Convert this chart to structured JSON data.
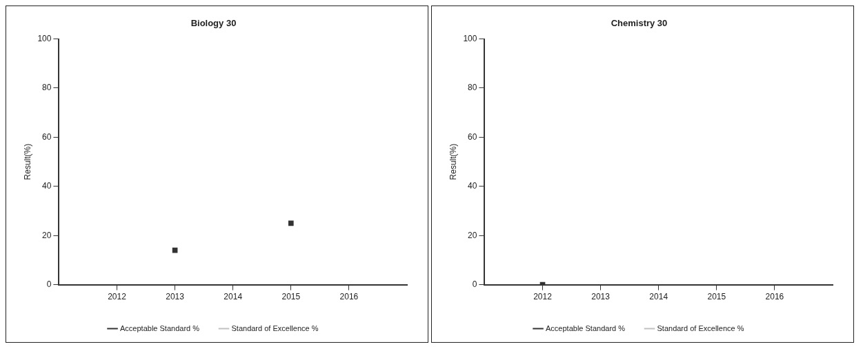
{
  "chart_data": [
    {
      "type": "scatter",
      "title": "Biology 30",
      "ylabel": "Result(%)",
      "xlim": [
        2011,
        2017
      ],
      "xticks": [
        2012,
        2013,
        2014,
        2015,
        2016
      ],
      "ylim": [
        0,
        100
      ],
      "yticks": [
        0,
        20,
        40,
        60,
        80,
        100
      ],
      "grid": false,
      "legend": "bottom",
      "marker": "square",
      "series": [
        {
          "name": "Acceptable Standard %",
          "color": "#333333",
          "x": [
            2013,
            2015
          ],
          "values": [
            14,
            25
          ]
        },
        {
          "name": "Standard of Excellence %",
          "color": "#c0c0c0"
        }
      ]
    },
    {
      "type": "scatter",
      "title": "Chemistry 30",
      "ylabel": "Result(%)",
      "xlim": [
        2011,
        2017
      ],
      "xticks": [
        2012,
        2013,
        2014,
        2015,
        2016
      ],
      "ylim": [
        0,
        100
      ],
      "yticks": [
        0,
        20,
        40,
        60,
        80,
        100
      ],
      "grid": false,
      "legend": "bottom",
      "marker": "square",
      "series": [
        {
          "name": "Acceptable Standard %",
          "color": "#333333",
          "x": [
            2012
          ],
          "values": [
            0
          ]
        },
        {
          "name": "Standard of Excellence %",
          "color": "#c0c0c0"
        }
      ]
    }
  ]
}
